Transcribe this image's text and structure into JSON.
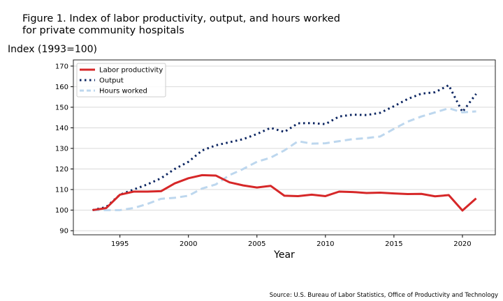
{
  "chart_data": {
    "type": "line",
    "title": "Figure 1. Index of labor productivity, output, and hours worked\nfor private community hospitals",
    "ylabel": "Index (1993=100)",
    "xlabel": "Year",
    "source": "Source: U.S. Bureau of Labor Statistics, Office of Productivity and Technology",
    "ylim": [
      88,
      173
    ],
    "xlim": [
      1991.6,
      2022.4
    ],
    "yticks": [
      90,
      100,
      110,
      120,
      130,
      140,
      150,
      160,
      170
    ],
    "xticks": [
      1995,
      2000,
      2005,
      2010,
      2015,
      2020
    ],
    "grid": "horizontal",
    "legend": "top-left",
    "x": [
      1993,
      1994,
      1995,
      1996,
      1997,
      1998,
      1999,
      2000,
      2001,
      2002,
      2003,
      2004,
      2005,
      2006,
      2007,
      2008,
      2009,
      2010,
      2011,
      2012,
      2013,
      2014,
      2015,
      2016,
      2017,
      2018,
      2019,
      2020,
      2021
    ],
    "series": [
      {
        "name": "Labor productivity",
        "color": "#d62728",
        "style": "solid",
        "values": [
          100,
          101,
          107.5,
          109,
          109,
          109.2,
          113,
          115.5,
          117,
          116.8,
          113.5,
          112,
          111,
          111.8,
          107,
          106.8,
          107.5,
          106.8,
          109,
          108.8,
          108.3,
          108.5,
          108.1,
          107.8,
          107.9,
          106.7,
          107.3,
          99.8,
          105.7
        ]
      },
      {
        "name": "Output",
        "color": "#0b2561",
        "style": "dotted",
        "values": [
          100,
          101.5,
          107.5,
          110,
          112.5,
          115.5,
          120,
          123.5,
          129,
          131.5,
          133,
          134.5,
          137,
          140,
          138,
          142.2,
          142.3,
          141.8,
          145.5,
          146.4,
          146.2,
          147.3,
          150.5,
          154,
          156.6,
          157.3,
          160.7,
          147.7,
          156.5
        ]
      },
      {
        "name": "Hours worked",
        "color": "#bdd7ee",
        "style": "dashed",
        "values": [
          100,
          100,
          100,
          101,
          103,
          105.5,
          106,
          107,
          110.5,
          112.5,
          117,
          120,
          123.5,
          125.5,
          129,
          133.5,
          132.3,
          132.5,
          133.5,
          134.5,
          135,
          135.8,
          139.5,
          143,
          145.5,
          147.5,
          149.5,
          147.5,
          148
        ]
      }
    ]
  }
}
